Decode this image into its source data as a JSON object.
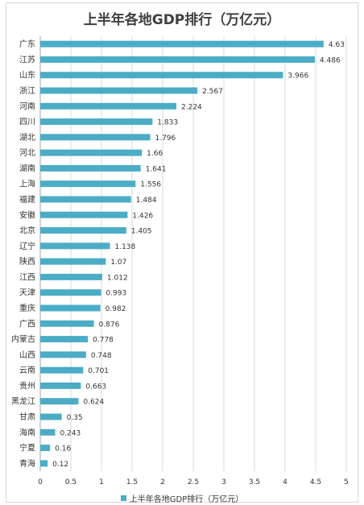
{
  "chart_data": {
    "type": "bar",
    "orientation": "horizontal",
    "title": "上半年各地GDP排行（万亿元）",
    "categories": [
      "广东",
      "江苏",
      "山东",
      "浙江",
      "河南",
      "四川",
      "湖北",
      "河北",
      "湖南",
      "上海",
      "福建",
      "安徽",
      "北京",
      "辽宁",
      "陕西",
      "江西",
      "天津",
      "重庆",
      "广西",
      "内蒙古",
      "山西",
      "云南",
      "贵州",
      "黑龙江",
      "甘肃",
      "海南",
      "宁夏",
      "青海"
    ],
    "value_labels": [
      "4.63",
      "4.486",
      "3.966",
      "2.567",
      "2.224",
      "1.833",
      "1.796",
      "1.66",
      "1.641",
      "1.556",
      "1.484",
      "1.426",
      "1.405",
      "1.138",
      "1.07",
      "1.012",
      "0.993",
      "0.982",
      "0.876",
      "0.778",
      "0.748",
      "0.701",
      "0.663",
      "0.624",
      "0.35",
      "0.243",
      "0.16",
      "0.12"
    ],
    "series": [
      {
        "name": "上半年各地GDP排行（万亿元）",
        "color": "#4bacc6",
        "values": [
          4.63,
          4.486,
          3.966,
          2.567,
          2.224,
          1.833,
          1.796,
          1.66,
          1.641,
          1.556,
          1.484,
          1.426,
          1.405,
          1.138,
          1.07,
          1.012,
          0.993,
          0.982,
          0.876,
          0.778,
          0.748,
          0.701,
          0.663,
          0.624,
          0.35,
          0.243,
          0.16,
          0.12
        ]
      }
    ],
    "xlim": [
      0,
      5
    ],
    "xticks": [
      "0",
      "0.5",
      "1",
      "1.5",
      "2",
      "2.5",
      "3",
      "3.5",
      "4",
      "4.5",
      "5"
    ],
    "grid": true,
    "legend_position": "bottom",
    "grid_color": "#d9d9d9",
    "axis_color": "#a6a6a6"
  }
}
